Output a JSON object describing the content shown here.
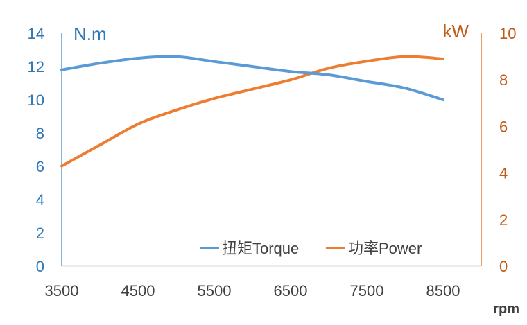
{
  "chart_data": {
    "type": "line",
    "x": [
      3500,
      4000,
      4500,
      5000,
      5500,
      6000,
      6500,
      7000,
      7500,
      8000,
      8500
    ],
    "x_ticks": [
      3500,
      4500,
      5500,
      6500,
      7500,
      8500
    ],
    "xlim": [
      3500,
      9000
    ],
    "xlabel": "rpm",
    "y_left": {
      "unit_label": "N.m",
      "ylim": [
        0,
        14
      ],
      "ticks": [
        0,
        2,
        4,
        6,
        8,
        10,
        12,
        14
      ],
      "color": "#2f78b4"
    },
    "y_right": {
      "unit_label": "kW",
      "ylim": [
        0,
        10
      ],
      "ticks": [
        0,
        2,
        4,
        6,
        8,
        10
      ],
      "color": "#c05a17"
    },
    "series": [
      {
        "name": "扭矩Torque",
        "axis": "left",
        "color": "#5b9bd5",
        "values": [
          11.8,
          12.2,
          12.5,
          12.6,
          12.3,
          12.0,
          11.7,
          11.5,
          11.1,
          10.7,
          10.0
        ]
      },
      {
        "name": "功率Power",
        "axis": "right",
        "color": "#ed7d31",
        "values": [
          4.3,
          5.2,
          6.1,
          6.7,
          7.2,
          7.6,
          8.0,
          8.5,
          8.8,
          9.0,
          8.9
        ]
      }
    ],
    "grid": false,
    "legend_position": "bottom-right"
  }
}
